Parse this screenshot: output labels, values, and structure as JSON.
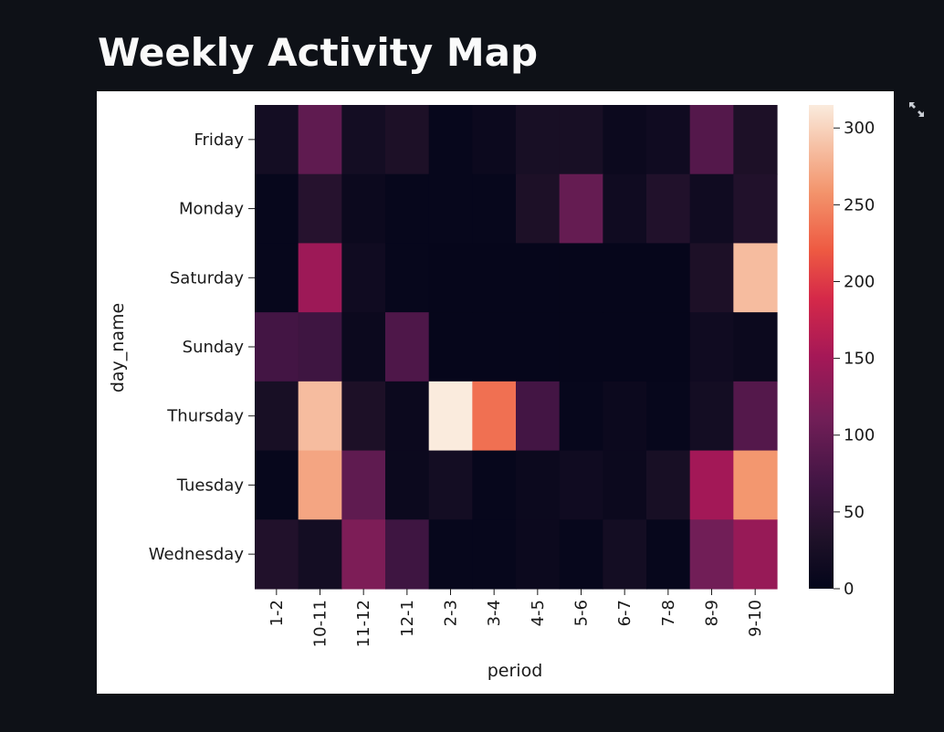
{
  "page": {
    "title": "Weekly Activity Map"
  },
  "toolbar": {
    "fullscreen_icon": "expand-arrows-icon"
  },
  "chart_data": {
    "type": "heatmap",
    "xlabel": "period",
    "ylabel": "day_name",
    "x": [
      "1-2",
      "10-11",
      "11-12",
      "12-1",
      "2-3",
      "3-4",
      "4-5",
      "5-6",
      "6-7",
      "7-8",
      "8-9",
      "9-10"
    ],
    "y": [
      "Friday",
      "Monday",
      "Saturday",
      "Sunday",
      "Thursday",
      "Tuesday",
      "Wednesday"
    ],
    "values": [
      [
        20,
        95,
        20,
        30,
        5,
        10,
        25,
        25,
        10,
        15,
        85,
        30
      ],
      [
        5,
        40,
        10,
        5,
        5,
        5,
        30,
        100,
        15,
        35,
        15,
        35
      ],
      [
        5,
        145,
        15,
        5,
        3,
        3,
        3,
        3,
        3,
        3,
        30,
        285
      ],
      [
        70,
        65,
        10,
        80,
        3,
        3,
        3,
        3,
        3,
        3,
        15,
        10
      ],
      [
        25,
        285,
        30,
        10,
        315,
        235,
        70,
        5,
        10,
        5,
        20,
        85
      ],
      [
        5,
        270,
        95,
        10,
        20,
        5,
        10,
        15,
        10,
        25,
        150,
        260
      ],
      [
        35,
        20,
        120,
        65,
        5,
        5,
        10,
        5,
        20,
        5,
        110,
        140
      ]
    ],
    "colorbar": {
      "range": [
        0,
        315
      ],
      "ticks": [
        0,
        50,
        100,
        150,
        200,
        250,
        300
      ]
    },
    "colormap": "rocket"
  }
}
